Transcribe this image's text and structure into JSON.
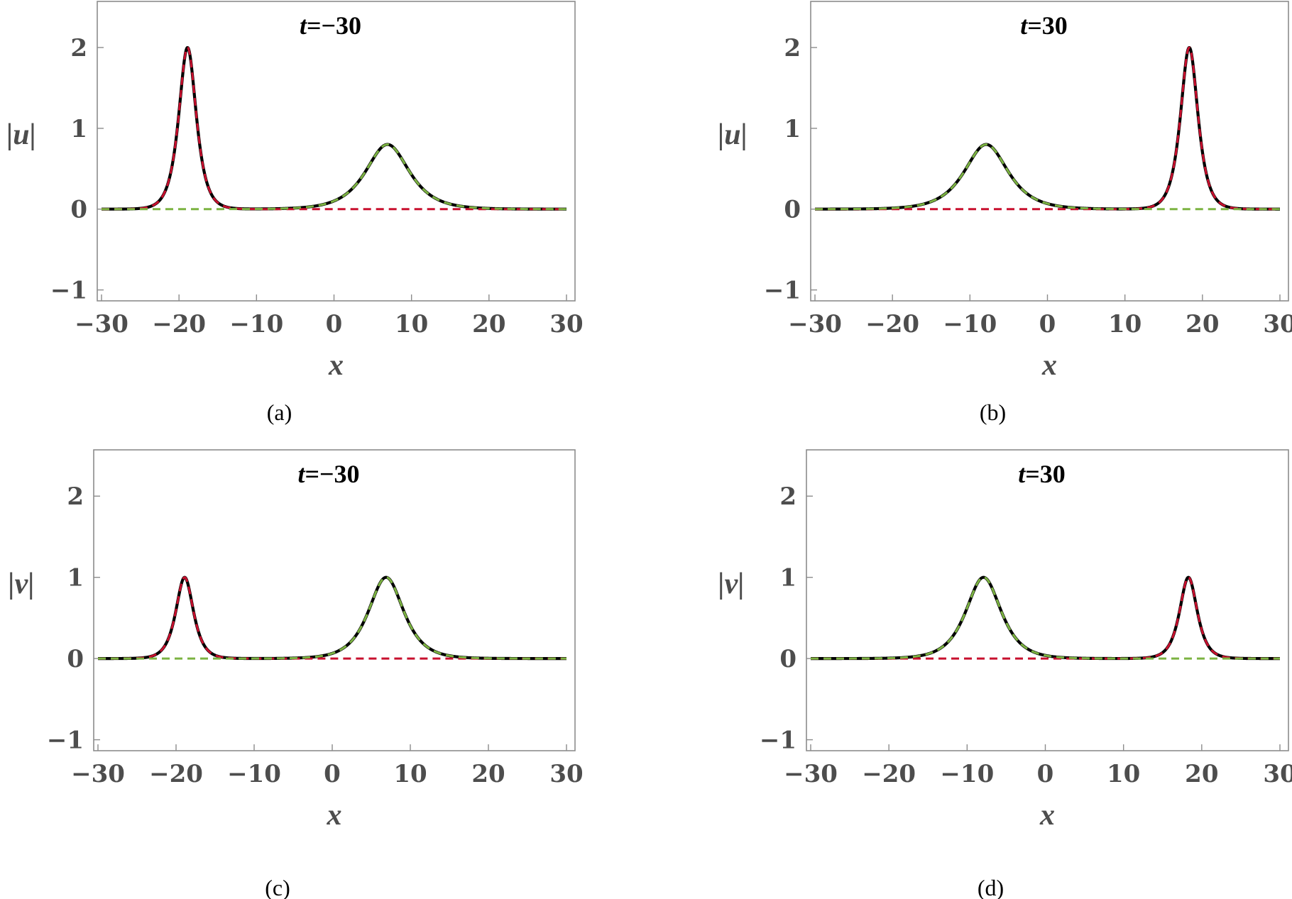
{
  "colors": {
    "frame": "#8c8c8c",
    "tick_text": "#4d4d4d",
    "exact_curve": "#000000",
    "component_1": "#c8102e",
    "component_2": "#7cb342"
  },
  "chart_data": [
    {
      "id": "a",
      "type": "line",
      "caption": "(a)",
      "title": {
        "var": "t",
        "rest": "=−30"
      },
      "xlabel": "x",
      "ylabel": "|u|",
      "xlim": [
        -30,
        30
      ],
      "ylim": [
        -1.1,
        2.5
      ],
      "x_ticks": [
        -30,
        -20,
        -10,
        0,
        10,
        20,
        30
      ],
      "x_tick_labels": [
        "−30",
        "−20",
        "−10",
        "0",
        "10",
        "20",
        "30"
      ],
      "y_ticks": [
        -1,
        0,
        1,
        2
      ],
      "y_tick_labels": [
        "−1",
        "0",
        "1",
        "2"
      ],
      "grid": false,
      "legend": "none",
      "series": [
        {
          "style": "solid",
          "color": "#000000",
          "components": [
            {
              "peak_x": -18.9,
              "amplitude": 2.0,
              "k": 1.0
            },
            {
              "peak_x": 6.9,
              "amplitude": 0.8,
              "k": 0.4
            }
          ]
        },
        {
          "style": "dashed",
          "color": "#c8102e",
          "components": [
            {
              "peak_x": -18.9,
              "amplitude": 2.0,
              "k": 1.0
            }
          ]
        },
        {
          "style": "dashed",
          "color": "#7cb342",
          "components": [
            {
              "peak_x": 6.9,
              "amplitude": 0.8,
              "k": 0.4
            }
          ]
        }
      ]
    },
    {
      "id": "b",
      "type": "line",
      "caption": "(b)",
      "title": {
        "var": "t",
        "rest": "=30"
      },
      "xlabel": "x",
      "ylabel": "|u|",
      "xlim": [
        -30,
        30
      ],
      "ylim": [
        -1.1,
        2.5
      ],
      "x_ticks": [
        -30,
        -20,
        -10,
        0,
        10,
        20,
        30
      ],
      "x_tick_labels": [
        "−30",
        "−20",
        "−10",
        "0",
        "10",
        "20",
        "30"
      ],
      "y_ticks": [
        -1,
        0,
        1,
        2
      ],
      "y_tick_labels": [
        "−1",
        "0",
        "1",
        "2"
      ],
      "grid": false,
      "legend": "none",
      "series": [
        {
          "style": "solid",
          "color": "#000000",
          "components": [
            {
              "peak_x": -7.9,
              "amplitude": 0.8,
              "k": 0.4
            },
            {
              "peak_x": 18.3,
              "amplitude": 2.0,
              "k": 1.0
            }
          ]
        },
        {
          "style": "dashed",
          "color": "#c8102e",
          "components": [
            {
              "peak_x": 18.3,
              "amplitude": 2.0,
              "k": 1.0
            }
          ]
        },
        {
          "style": "dashed",
          "color": "#7cb342",
          "components": [
            {
              "peak_x": -7.9,
              "amplitude": 0.8,
              "k": 0.4
            }
          ]
        }
      ]
    },
    {
      "id": "c",
      "type": "line",
      "caption": "(c)",
      "title": {
        "var": "t",
        "rest": "=−30"
      },
      "xlabel": "x",
      "ylabel": "|v|",
      "xlim": [
        -30,
        30
      ],
      "ylim": [
        -1.1,
        2.5
      ],
      "x_ticks": [
        -30,
        -20,
        -10,
        0,
        10,
        20,
        30
      ],
      "x_tick_labels": [
        "−30",
        "−20",
        "−10",
        "0",
        "10",
        "20",
        "30"
      ],
      "y_ticks": [
        -1,
        0,
        1,
        2
      ],
      "y_tick_labels": [
        "−1",
        "0",
        "1",
        "2"
      ],
      "grid": false,
      "legend": "none",
      "series": [
        {
          "style": "solid",
          "color": "#000000",
          "components": [
            {
              "peak_x": -18.9,
              "amplitude": 1.0,
              "k": 1.0
            },
            {
              "peak_x": 6.9,
              "amplitude": 1.0,
              "k": 0.5
            }
          ]
        },
        {
          "style": "dashed",
          "color": "#c8102e",
          "components": [
            {
              "peak_x": -18.9,
              "amplitude": 1.0,
              "k": 1.0
            }
          ]
        },
        {
          "style": "dashed",
          "color": "#7cb342",
          "components": [
            {
              "peak_x": 6.9,
              "amplitude": 1.0,
              "k": 0.5
            }
          ]
        }
      ]
    },
    {
      "id": "d",
      "type": "line",
      "caption": "(d)",
      "title": {
        "var": "t",
        "rest": "=30"
      },
      "xlabel": "x",
      "ylabel": "|v|",
      "xlim": [
        -30,
        30
      ],
      "ylim": [
        -1.1,
        2.5
      ],
      "x_ticks": [
        -30,
        -20,
        -10,
        0,
        10,
        20,
        30
      ],
      "x_tick_labels": [
        "−30",
        "−20",
        "−10",
        "0",
        "10",
        "20",
        "30"
      ],
      "y_ticks": [
        -1,
        0,
        1,
        2
      ],
      "y_tick_labels": [
        "−1",
        "0",
        "1",
        "2"
      ],
      "grid": false,
      "legend": "none",
      "series": [
        {
          "style": "solid",
          "color": "#000000",
          "components": [
            {
              "peak_x": -7.9,
              "amplitude": 1.0,
              "k": 0.5
            },
            {
              "peak_x": 18.3,
              "amplitude": 1.0,
              "k": 1.0
            }
          ]
        },
        {
          "style": "dashed",
          "color": "#c8102e",
          "components": [
            {
              "peak_x": 18.3,
              "amplitude": 1.0,
              "k": 1.0
            }
          ]
        },
        {
          "style": "dashed",
          "color": "#7cb342",
          "components": [
            {
              "peak_x": -7.9,
              "amplitude": 1.0,
              "k": 0.5
            }
          ]
        }
      ]
    }
  ]
}
